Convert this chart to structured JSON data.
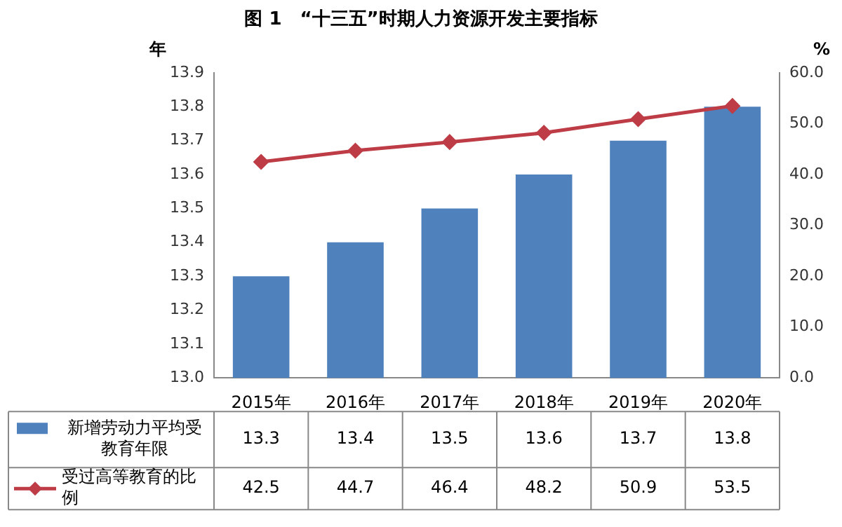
{
  "chart_data": {
    "type": "bar",
    "title": "图 1　“十三五”时期人力资源开发主要指标",
    "ylabel": "年",
    "y2label": "%",
    "categories": [
      "2015年",
      "2016年",
      "2017年",
      "2018年",
      "2019年",
      "2020年"
    ],
    "series": [
      {
        "name": "新增劳动力平均受教育年限",
        "color": "#4f81bd",
        "values": [
          13.3,
          13.4,
          13.5,
          13.6,
          13.7,
          13.8
        ]
      },
      {
        "name": "受过高等教育的比例",
        "type": "line",
        "axis": "y2",
        "color": "#be3c46",
        "marker": "diamond",
        "values": [
          42.5,
          44.7,
          46.4,
          48.2,
          50.9,
          53.5
        ]
      }
    ],
    "ylim": [
      13.0,
      13.9
    ],
    "yticks": [
      {
        "value": 13,
        "label": "13.0"
      },
      13.1,
      13.2,
      13.3,
      13.4,
      13.5,
      13.6,
      13.7,
      13.8,
      13.9
    ],
    "y2lim": [
      0,
      60
    ],
    "y2ticks": [
      {
        "value": 0,
        "label": "0.0"
      },
      {
        "value": 10,
        "label": "10.0"
      },
      {
        "value": 20,
        "label": "20.0"
      },
      {
        "value": 30,
        "label": "30.0"
      },
      {
        "value": 40,
        "label": "40.0"
      },
      {
        "value": 50,
        "label": "50.0"
      },
      {
        "value": 60,
        "label": "60.0"
      }
    ],
    "data_labels": true,
    "legend": "bottom"
  }
}
